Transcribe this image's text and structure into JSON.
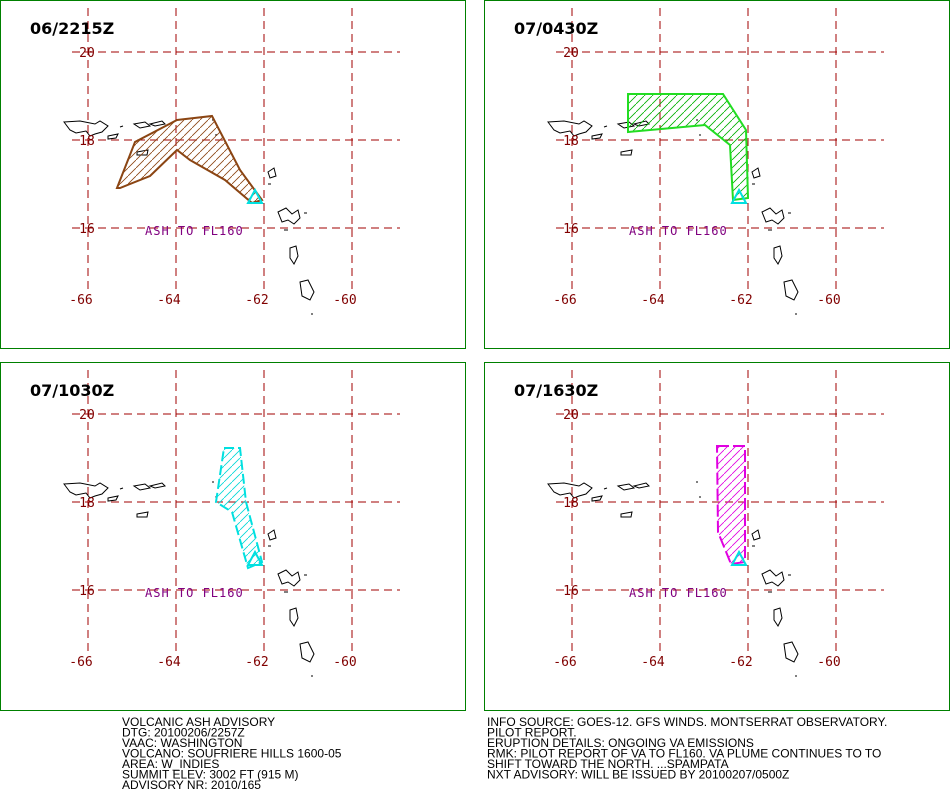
{
  "panels": [
    {
      "title": "06/2215Z",
      "annotation": "ASH TO FL160"
    },
    {
      "title": "07/0430Z",
      "annotation": "ASH TO FL160"
    },
    {
      "title": "07/1030Z",
      "annotation": "ASH TO FL160"
    },
    {
      "title": "07/1630Z",
      "annotation": "ASH TO FL160"
    }
  ],
  "grid": {
    "lat_labels": [
      "20",
      "18",
      "16"
    ],
    "lon_labels": [
      "-66",
      "-64",
      "-62",
      "-60"
    ]
  },
  "info_left": [
    "VOLCANIC ASH ADVISORY",
    "DTG: 20100206/2257Z",
    "VAAC: WASHINGTON",
    "VOLCANO: SOUFRIERE HILLS 1600-05",
    "AREA: W_INDIES",
    "SUMMIT ELEV: 3002 FT (915 M)",
    "ADVISORY NR: 2010/165"
  ],
  "info_right": [
    "INFO SOURCE: GOES-12. GFS WINDS. MONTSERRAT OBSERVATORY.",
    "PILOT REPORT.",
    "ERUPTION DETAILS: ONGOING VA EMISSIONS",
    "RMK: PILOT REPORT OF VA TO FL160. VA PLUME CONTINUES TO TO",
    "SHIFT TOWARD THE NORTH. ...SPAMPATA",
    "NXT ADVISORY: WILL BE ISSUED BY 20100207/0500Z"
  ]
}
